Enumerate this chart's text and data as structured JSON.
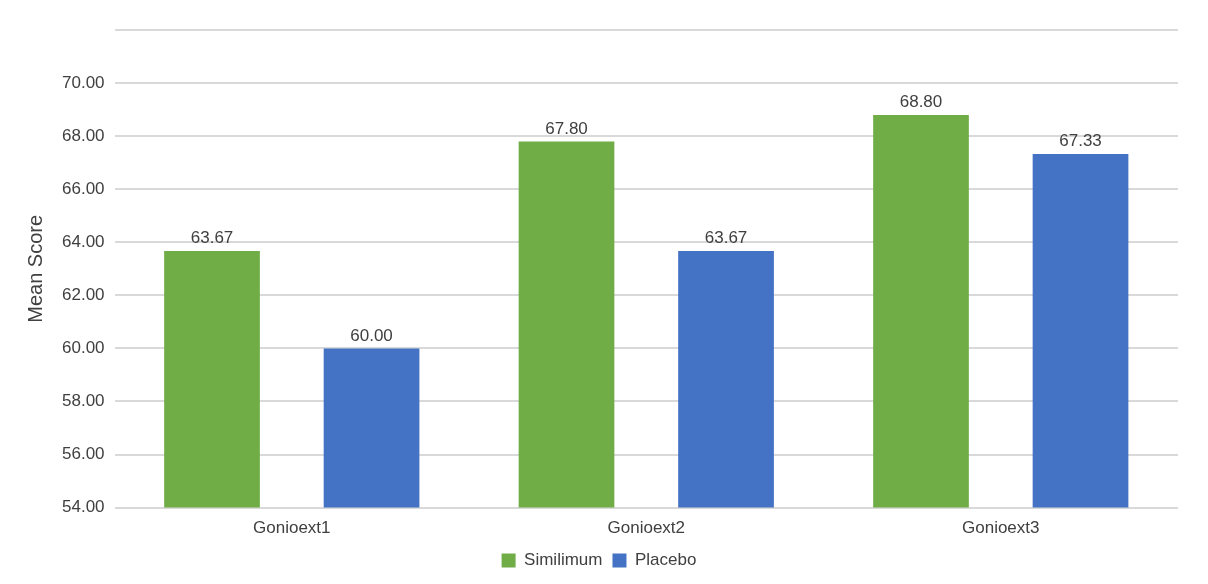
{
  "chart_data": {
    "type": "bar",
    "ylabel": "Mean Score",
    "categories": [
      "Gonioext1",
      "Gonioext2",
      "Gonioext3"
    ],
    "series": [
      {
        "name": "Similimum",
        "color": "#70ad47",
        "values": [
          63.67,
          67.8,
          68.8
        ],
        "value_labels": [
          "63.67",
          "67.80",
          "68.80"
        ]
      },
      {
        "name": "Placebo",
        "color": "#4472c4",
        "values": [
          60.0,
          63.67,
          67.33
        ],
        "value_labels": [
          "60.00",
          "63.67",
          "67.33"
        ]
      }
    ],
    "ylim": [
      54,
      72
    ],
    "yticks": [
      {
        "value": 54,
        "label": "54.00"
      },
      {
        "value": 56,
        "label": "56.00"
      },
      {
        "value": 58,
        "label": "58.00"
      },
      {
        "value": 60,
        "label": "60.00"
      },
      {
        "value": 62,
        "label": "62.00"
      },
      {
        "value": 64,
        "label": "64.00"
      },
      {
        "value": 66,
        "label": "66.00"
      },
      {
        "value": 68,
        "label": "68.00"
      },
      {
        "value": 70,
        "label": "70.00"
      },
      {
        "value": 72,
        "label": null
      }
    ],
    "grid": "y",
    "legend": "bottom"
  }
}
